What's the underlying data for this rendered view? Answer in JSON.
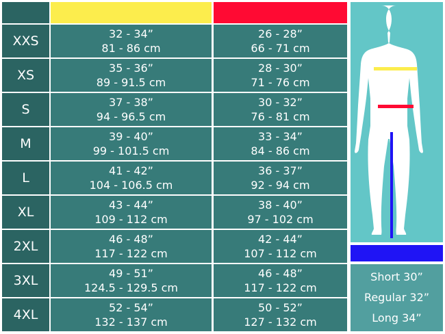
{
  "colors": {
    "chest": "#fced4d",
    "waist": "#ff0a33",
    "inseam": "#1f14f5",
    "panel": "#63c6c7"
  },
  "rows": [
    {
      "size": "XXS",
      "chest_in": "32 - 34”",
      "chest_cm": "81 - 86 cm",
      "waist_in": "26 - 28”",
      "waist_cm": "66 - 71 cm"
    },
    {
      "size": "XS",
      "chest_in": "35 - 36”",
      "chest_cm": "89 - 91.5 cm",
      "waist_in": "28 - 30”",
      "waist_cm": "71 - 76 cm"
    },
    {
      "size": "S",
      "chest_in": "37 - 38”",
      "chest_cm": "94 - 96.5 cm",
      "waist_in": "30 - 32”",
      "waist_cm": "76 - 81 cm"
    },
    {
      "size": "M",
      "chest_in": "39 - 40”",
      "chest_cm": "99 - 101.5 cm",
      "waist_in": "33 - 34”",
      "waist_cm": "84 - 86 cm"
    },
    {
      "size": "L",
      "chest_in": "41 - 42”",
      "chest_cm": "104 - 106.5 cm",
      "waist_in": "36 - 37”",
      "waist_cm": "92 - 94 cm"
    },
    {
      "size": "XL",
      "chest_in": "43 - 44”",
      "chest_cm": "109 - 112 cm",
      "waist_in": "38 - 40”",
      "waist_cm": "97 - 102 cm"
    },
    {
      "size": "2XL",
      "chest_in": "46 - 48”",
      "chest_cm": "117 - 122 cm",
      "waist_in": "42 - 44”",
      "waist_cm": "107 - 112 cm"
    },
    {
      "size": "3XL",
      "chest_in": "49 - 51”",
      "chest_cm": "124.5 - 129.5 cm",
      "waist_in": "46 - 48”",
      "waist_cm": "117 - 122 cm"
    },
    {
      "size": "4XL",
      "chest_in": "52 - 54”",
      "chest_cm": "132 - 137 cm",
      "waist_in": "50 - 52”",
      "waist_cm": "127 - 132 cm"
    }
  ],
  "inseam": [
    "Short 30”",
    "Regular 32”",
    "Long 34”"
  ]
}
